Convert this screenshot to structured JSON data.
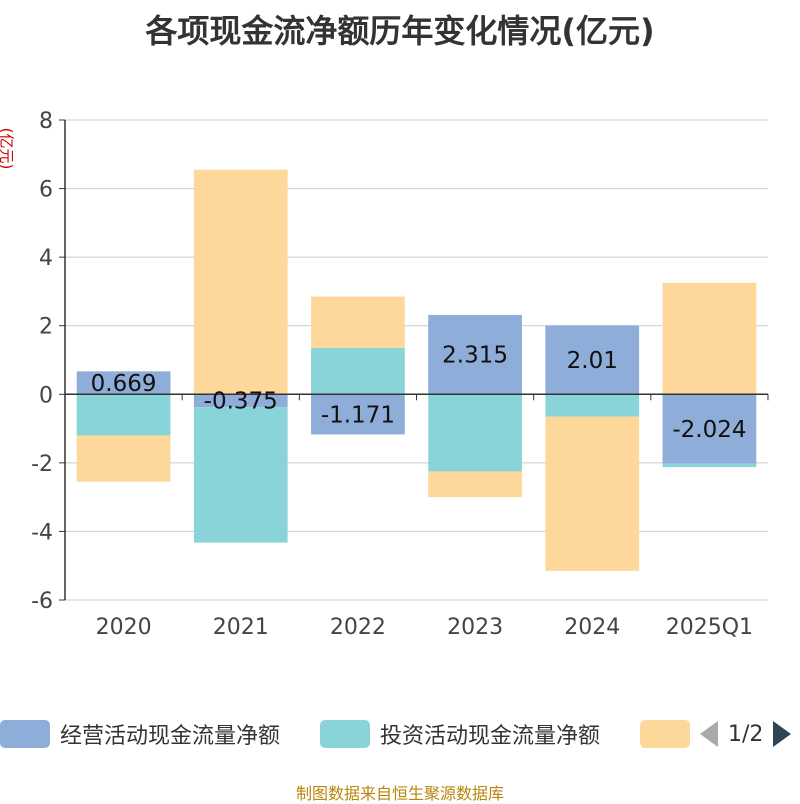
{
  "chart_data": {
    "type": "bar",
    "stacked": true,
    "title": "各项现金流净额历年变化情况(亿元)",
    "unit_label": "(亿元)",
    "categories": [
      "2020",
      "2021",
      "2022",
      "2023",
      "2024",
      "2025Q1"
    ],
    "ylim": [
      -6,
      8
    ],
    "yticks": [
      "8",
      "6",
      "4",
      "2",
      "0",
      "-2",
      "-4",
      "-6"
    ],
    "grid": true,
    "legend_position": "bottom",
    "series": [
      {
        "name": "经营活动现金流量净额",
        "color": "#8fadd9",
        "values": [
          0.669,
          -0.375,
          -1.171,
          2.315,
          2.01,
          -2.024
        ],
        "labels": [
          "0.669",
          "-0.375",
          "-1.171",
          "2.315",
          "2.01",
          "-2.024"
        ]
      },
      {
        "name": "投资活动现金流量净额",
        "color": "#88d4d8",
        "values": [
          -1.2,
          -3.95,
          1.35,
          -2.25,
          -0.65,
          -0.1
        ]
      },
      {
        "name": "",
        "color": "#fdd89a",
        "values": [
          -1.35,
          6.55,
          1.5,
          -0.75,
          -4.5,
          3.25
        ]
      }
    ],
    "source": "制图数据来自恒生聚源数据库"
  },
  "legend": {
    "pager_text": "1/2"
  }
}
